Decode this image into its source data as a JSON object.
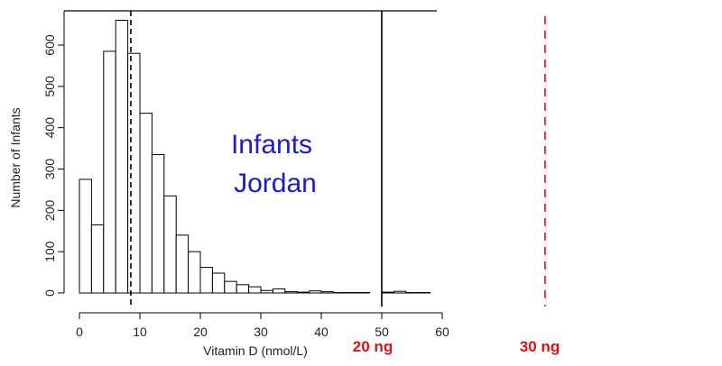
{
  "chart_data": {
    "type": "bar",
    "xlabel": "Vitamin D (nmol/L)",
    "ylabel": "Number of Infants",
    "xlim": [
      0,
      80
    ],
    "ylim": [
      0,
      680
    ],
    "x_ticks": [
      0,
      10,
      20,
      30,
      40,
      50,
      60
    ],
    "y_ticks": [
      0,
      100,
      200,
      300,
      400,
      500,
      600
    ],
    "bin_width": 2,
    "bin_starts": [
      0,
      2,
      4,
      6,
      8,
      10,
      12,
      14,
      16,
      18,
      20,
      22,
      24,
      26,
      28,
      30,
      32,
      34,
      36,
      38,
      40,
      42,
      44,
      46,
      48,
      50,
      52,
      54,
      56
    ],
    "values": [
      275,
      165,
      585,
      660,
      580,
      435,
      335,
      235,
      140,
      100,
      62,
      48,
      28,
      20,
      15,
      6,
      10,
      3,
      2,
      5,
      3,
      1,
      1,
      1,
      0,
      2,
      4,
      1,
      1
    ],
    "annotation": {
      "lines": [
        "Infants",
        "Jordan"
      ],
      "color": "#1a1ad0"
    },
    "reference_lines": [
      {
        "x": 8.5,
        "style": "dashed",
        "color": "#000000",
        "label": ""
      },
      {
        "x": 50,
        "style": "solid",
        "color": "#000000",
        "label": "20 ng",
        "label_color": "#e01010"
      },
      {
        "x": 77,
        "style": "dashed",
        "color": "#e01010",
        "label": "30 ng",
        "label_color": "#e01010"
      }
    ],
    "grid": false
  }
}
